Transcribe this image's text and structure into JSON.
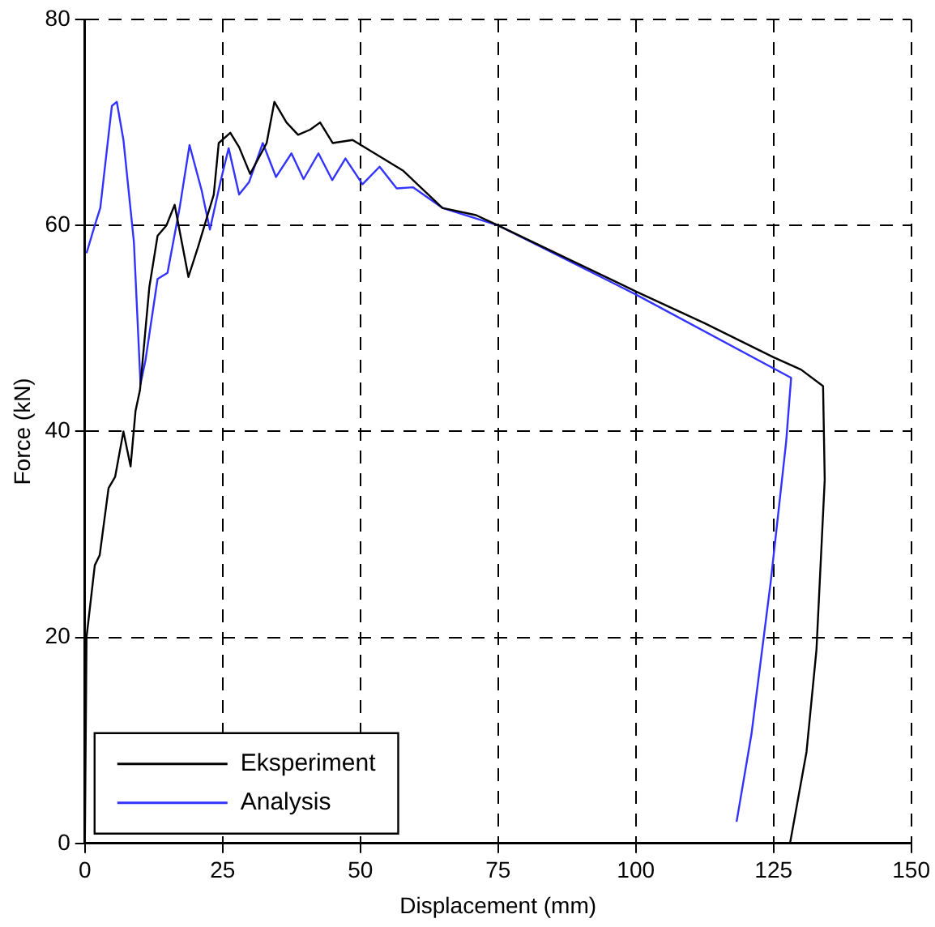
{
  "chart_data": {
    "type": "line",
    "xlabel": "Displacement (mm)",
    "ylabel": "Force (kN)",
    "xlim": [
      0,
      150
    ],
    "ylim": [
      0,
      80
    ],
    "xticks": [
      0,
      25,
      50,
      75,
      100,
      125,
      150
    ],
    "yticks": [
      0,
      20,
      40,
      60,
      80
    ],
    "grid": true,
    "legend": "bottom left",
    "marker": "none",
    "line_style": "solid",
    "series": [
      {
        "name": "Eksperiment",
        "color": "#000000",
        "x": [
          0,
          0.3,
          1.8,
          2.7,
          4.3,
          5.5,
          7,
          8.3,
          9.2,
          10,
          11.7,
          13.2,
          14.8,
          16.3,
          18.8,
          20.6,
          23.4,
          24.3,
          26.4,
          28,
          30,
          33,
          34.4,
          36.6,
          38.7,
          40.9,
          42.7,
          45,
          48.6,
          52.6,
          57.8,
          64.9,
          71,
          75,
          87.5,
          100,
          112.5,
          125,
          130,
          134,
          134.3,
          132.8,
          131,
          128
        ],
        "values": [
          0,
          20,
          27,
          28,
          34.5,
          35.6,
          40,
          36.6,
          42,
          44,
          54,
          59,
          60,
          62,
          55,
          58,
          63,
          68,
          69,
          67.6,
          65,
          68,
          72,
          70,
          68.8,
          69.3,
          70,
          68,
          68.3,
          67,
          65.3,
          61.7,
          61,
          60,
          56.8,
          53.6,
          50.5,
          47.2,
          46,
          44.4,
          35.3,
          18.8,
          8.9,
          0
        ]
      },
      {
        "name": "Analysis",
        "color": "#3333ff",
        "x": [
          0.3,
          1.8,
          2.8,
          4.9,
          5.8,
          7,
          8.9,
          10.1,
          11,
          13.2,
          15,
          17.2,
          19,
          21.2,
          22.7,
          24.6,
          26.1,
          28,
          29.8,
          32.3,
          34.7,
          37.5,
          39.7,
          42.4,
          44.9,
          47.3,
          50.4,
          53.5,
          56.6,
          59.6,
          64.9,
          75,
          100,
          128.2,
          127.3,
          124.5,
          121,
          118.3
        ],
        "values": [
          57.3,
          60,
          61.7,
          71.6,
          72,
          68.3,
          58.4,
          44.6,
          46.9,
          54.8,
          55.4,
          61.7,
          67.8,
          63.4,
          59.6,
          64.2,
          67.5,
          63,
          64.2,
          68,
          64.7,
          67,
          64.5,
          67,
          64.4,
          66.5,
          64,
          65.7,
          63.6,
          63.7,
          61.7,
          60,
          53.3,
          45.2,
          39,
          25.4,
          10.6,
          2.1
        ]
      }
    ]
  }
}
